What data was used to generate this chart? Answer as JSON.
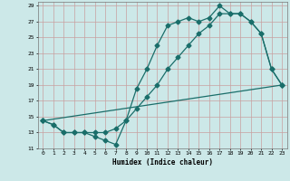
{
  "xlabel": "Humidex (Indice chaleur)",
  "bg_color": "#cce8e8",
  "grid_color": "#c8a0a0",
  "line_color": "#1a6e6a",
  "line1_x": [
    0,
    1,
    2,
    3,
    4,
    5,
    6,
    7,
    8,
    9,
    10,
    11,
    12,
    13,
    14,
    15,
    16,
    17,
    18,
    19,
    20,
    21,
    22,
    23
  ],
  "line1_y": [
    14.5,
    14.0,
    13.0,
    13.0,
    13.0,
    12.5,
    12.0,
    11.5,
    14.5,
    18.5,
    21.0,
    24.0,
    26.5,
    27.0,
    27.5,
    27.0,
    27.5,
    29.0,
    28.0,
    28.0,
    27.0,
    25.5,
    21.0,
    19.0
  ],
  "line2_x": [
    0,
    1,
    2,
    3,
    4,
    5,
    6,
    7,
    8,
    9,
    10,
    11,
    12,
    13,
    14,
    15,
    16,
    17,
    18,
    19,
    20,
    21,
    22,
    23
  ],
  "line2_y": [
    14.5,
    14.0,
    13.0,
    13.0,
    13.0,
    13.0,
    13.0,
    13.5,
    14.5,
    16.0,
    17.5,
    19.0,
    21.0,
    22.5,
    24.0,
    25.5,
    26.5,
    28.0,
    28.0,
    28.0,
    27.0,
    25.5,
    21.0,
    19.0
  ],
  "line3_x": [
    0,
    23
  ],
  "line3_y": [
    14.5,
    19.0
  ],
  "xlim_min": -0.5,
  "xlim_max": 23.5,
  "ylim_min": 11,
  "ylim_max": 29.5,
  "xticks": [
    0,
    1,
    2,
    3,
    4,
    5,
    6,
    7,
    8,
    9,
    10,
    11,
    12,
    13,
    14,
    15,
    16,
    17,
    18,
    19,
    20,
    21,
    22,
    23
  ],
  "yticks": [
    11,
    13,
    15,
    17,
    19,
    21,
    23,
    25,
    27,
    29
  ]
}
